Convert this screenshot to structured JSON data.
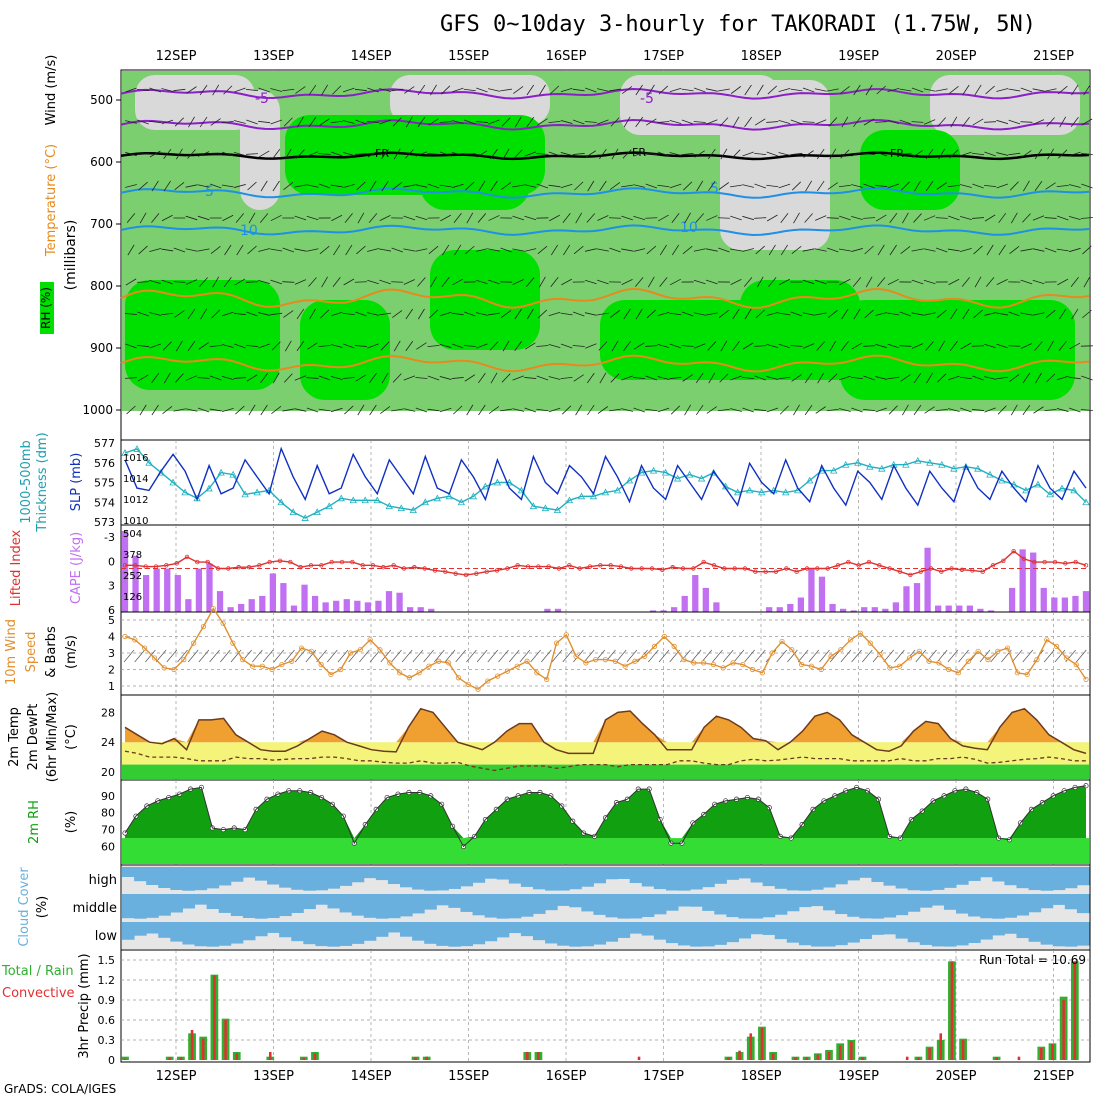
{
  "title": "GFS 0~10day 3-hourly for TAKORADI (1.75W, 5N)",
  "footer": "GrADS: COLA/IGES",
  "dates": [
    "12SEP",
    "13SEP",
    "14SEP",
    "15SEP",
    "16SEP",
    "17SEP",
    "18SEP",
    "19SEP",
    "20SEP",
    "21SEP"
  ],
  "colors": {
    "rh_light": "#d9d9d9",
    "rh_green": "#7ccf6f",
    "rh_bright": "#00e000",
    "temp_purple": "#8b1fc8",
    "temp_blue": "#1e90e6",
    "temp_orange": "#e68a1e",
    "fr": "#000000",
    "slp": "#1030c0",
    "thick": "#20b0c0",
    "li": "#e03030",
    "cape": "#c070f0",
    "wind": "#e09030",
    "temp_fill": "#f0a030",
    "dew_fill": "#f4f47a",
    "rh_fill": "#10a010",
    "cloud": "#6ab0de",
    "rain_total": "#30b030",
    "rain_conv": "#e03030"
  },
  "panels": {
    "profile": {
      "ylabel_rh": "RH (%)",
      "ylabel_temp": "Temperature (°C)",
      "ylabel_wind": "Wind (m/s)",
      "ylabel_units": "(millibars)",
      "levels": [
        "500",
        "600",
        "700",
        "800",
        "900",
        "1000"
      ],
      "contours": {
        "p5": "-5",
        "fr": "FR",
        "m5": "5",
        "m10": "10"
      }
    },
    "slp": {
      "label_a": "1000-500mb",
      "label_b": "Thickness (dm)",
      "label_c": "SLP (mb)",
      "left_ticks": [
        "577",
        "576",
        "575",
        "574",
        "573"
      ],
      "right_ticks": [
        "1016",
        "1014",
        "1012",
        "1010"
      ]
    },
    "li": {
      "label_a": "Lifted Index",
      "label_b": "CAPE (J/kg)",
      "left_ticks": [
        "-3",
        "0",
        "3",
        "6"
      ],
      "right_ticks": [
        "504",
        "378",
        "252",
        "126"
      ]
    },
    "wind": {
      "label_a": "10m Wind",
      "label_b": "Speed",
      "label_c": "& Barbs",
      "label_d": "(m/s)",
      "ticks": [
        "5",
        "4",
        "3",
        "2",
        "1"
      ]
    },
    "temp": {
      "label_a": "2m Temp",
      "label_b": "2m DewPt",
      "label_c": "(6hr Min/Max)",
      "label_d": "(°C)",
      "ticks": [
        "28",
        "24",
        "20"
      ]
    },
    "rh": {
      "label_a": "2m RH",
      "label_b": "(%)",
      "ticks": [
        "90",
        "80",
        "70",
        "60"
      ]
    },
    "cloud": {
      "label_a": "Cloud Cover",
      "label_b": "(%)",
      "ticks": [
        "high",
        "middle",
        "low"
      ]
    },
    "precip": {
      "label_a": "Total / Rain",
      "label_b": "Convective",
      "label_c": "3hr Precip (mm)",
      "ticks": [
        "1.5",
        "1.2",
        "0.9",
        "0.6",
        "0.3",
        "0"
      ],
      "run_total": "Run Total = 10.69"
    }
  },
  "chart_data": [
    {
      "type": "line",
      "title": "1000-500mb Thickness (dm) / SLP (mb)",
      "series": [
        {
          "name": "SLP (mb)",
          "values": [
            1015.5,
            1013,
            1012.8,
            1014.5,
            1016,
            1014.5,
            1012,
            1015,
            1012.5,
            1013,
            1015.5,
            1014,
            1012.5,
            1016.5,
            1014,
            1012,
            1015,
            1012.5,
            1013,
            1016,
            1014,
            1012.5,
            1015.5,
            1014,
            1012.5,
            1015.8,
            1013,
            1012.5,
            1015.5,
            1014,
            1012,
            1015.5,
            1013,
            1012,
            1015.8,
            1013.5,
            1012.5,
            1015,
            1014,
            1012.5,
            1015.8,
            1014,
            1011.8,
            1015,
            1013,
            1012,
            1015,
            1013.5,
            1012,
            1014.5,
            1013,
            1011.5,
            1015.2,
            1013.5,
            1012.5,
            1015.5,
            1013,
            1011.8,
            1015,
            1013,
            1011.5,
            1014.5,
            1013.5,
            1012,
            1015,
            1013,
            1011.5,
            1014.5,
            1013,
            1011.8,
            1015,
            1013,
            1012,
            1014.5,
            1013,
            1011.8,
            1015,
            1013,
            1012,
            1014.5,
            1013
          ]
        },
        {
          "name": "1000-500mb Thickness (dm)",
          "values": [
            576.5,
            576.7,
            576,
            575.5,
            575,
            574.5,
            574.2,
            574.7,
            575.5,
            575.4,
            574.4,
            574.5,
            574.6,
            574,
            573.5,
            573.2,
            573.5,
            573.8,
            574.2,
            574.1,
            574.1,
            574.1,
            573.8,
            573.7,
            573.6,
            574,
            574.2,
            574.3,
            574,
            574.3,
            574.8,
            575,
            575,
            574.6,
            573.8,
            573.7,
            573.6,
            574.1,
            574.3,
            574.3,
            574.5,
            574.6,
            575.1,
            575.5,
            575.6,
            575.5,
            575.2,
            575.4,
            575.2,
            575.5,
            574.8,
            574.5,
            574.6,
            574.5,
            574.6,
            574.5,
            574.6,
            575.1,
            575.6,
            575.6,
            575.9,
            576,
            575.8,
            575.7,
            575.9,
            575.9,
            576.1,
            576,
            575.9,
            575.7,
            575.8,
            575.7,
            575.4,
            575.1,
            574.9,
            574.6,
            574.9,
            574.4,
            574.7,
            574.6,
            574
          ]
        }
      ]
    },
    {
      "type": "bar",
      "title": "Lifted Index / CAPE (J/kg)",
      "series": [
        {
          "name": "CAPE (J/kg)",
          "values": [
            504,
            350,
            230,
            270,
            270,
            230,
            80,
            270,
            300,
            130,
            30,
            50,
            80,
            100,
            240,
            180,
            40,
            170,
            100,
            60,
            70,
            80,
            70,
            60,
            70,
            130,
            120,
            30,
            30,
            20,
            0,
            0,
            0,
            0,
            0,
            0,
            0,
            0,
            0,
            0,
            20,
            20,
            0,
            0,
            0,
            0,
            0,
            0,
            0,
            0,
            10,
            10,
            30,
            100,
            230,
            150,
            60,
            0,
            0,
            0,
            0,
            30,
            30,
            50,
            90,
            270,
            220,
            50,
            20,
            10,
            30,
            30,
            20,
            60,
            160,
            180,
            400,
            40,
            40,
            40,
            40,
            20,
            10,
            0,
            150,
            390,
            370,
            150,
            90,
            90,
            100,
            130
          ]
        },
        {
          "name": "Lifted Index",
          "values": [
            -0.5,
            -0.5,
            -0.3,
            -0.3,
            -0.5,
            -0.8,
            -1.8,
            -1,
            -1,
            0,
            0,
            -0.2,
            -0.2,
            -0.5,
            -1,
            -1.2,
            -1,
            -0.2,
            -0.5,
            -0.5,
            -1,
            -1,
            -1,
            -0.5,
            -0.5,
            -0.2,
            -0.5,
            0,
            -0.2,
            0,
            0.3,
            0.5,
            0.8,
            1,
            0.8,
            0.5,
            0.3,
            0,
            -0.5,
            -0.3,
            -0.3,
            -0.3,
            0,
            -0.5,
            0,
            -0.3,
            -0.5,
            -0.5,
            -0.3,
            0,
            0,
            0,
            0.2,
            -0.2,
            0,
            0,
            -1,
            -0.5,
            0,
            0,
            0,
            0.5,
            0.5,
            0.5,
            0,
            0.5,
            0,
            0,
            0,
            -0.5,
            -1,
            -0.5,
            -1,
            -0.5,
            0,
            0.5,
            1,
            0.5,
            0,
            0.5,
            0,
            0.2,
            0.3,
            0.5,
            -0.5,
            -1.2,
            -2.7,
            -1.5,
            -1,
            -1,
            -1,
            -0.8,
            -1,
            -0.5
          ]
        }
      ]
    },
    {
      "type": "line",
      "title": "10m Wind Speed & Barbs (m/s)",
      "series": [
        {
          "name": "Speed",
          "values": [
            4,
            3.8,
            3.3,
            2.7,
            2.1,
            2,
            2.6,
            3.6,
            4.6,
            5.7,
            4.8,
            3.6,
            2.6,
            2.2,
            2.2,
            2,
            2.3,
            2.5,
            3.3,
            3.1,
            2.3,
            1.7,
            2,
            3,
            3.2,
            3.8,
            3.2,
            2.4,
            1.8,
            1.5,
            1.8,
            2.2,
            2.5,
            2.4,
            1.5,
            1.1,
            0.8,
            1.3,
            1.6,
            1.9,
            2.2,
            2.5,
            1.8,
            1.4,
            3.6,
            4.1,
            2.8,
            2.4,
            2.6,
            2.6,
            2.5,
            2.2,
            2.5,
            2.8,
            3.4,
            4,
            3.4,
            2.6,
            2.4,
            2.4,
            2.3,
            2.1,
            2.4,
            2.3,
            2,
            1.8,
            3,
            3.7,
            3.2,
            2.3,
            2.2,
            2,
            2.8,
            3.2,
            3.8,
            4.2,
            3.6,
            2.9,
            2.1,
            2.2,
            2.7,
            3.1,
            2.5,
            2.4,
            2,
            1.8,
            2.5,
            3.1,
            2.6,
            3.1,
            3.3,
            1.8,
            1.7,
            2.6,
            3.8,
            3.4,
            2.7,
            2.3,
            1.4
          ]
        }
      ]
    },
    {
      "type": "area",
      "title": "2m Temp / 2m DewPt (°C)",
      "series": [
        {
          "name": "2m Temp",
          "values": [
            26,
            25,
            24,
            23.8,
            24.5,
            23,
            27,
            27,
            27.2,
            25,
            24,
            23,
            22.8,
            22.8,
            23.5,
            24.5,
            25.5,
            25,
            24,
            23.5,
            23,
            22.8,
            22.7,
            26,
            28.5,
            28,
            26,
            24,
            23.5,
            23,
            24,
            25.5,
            26.5,
            26.5,
            24,
            23,
            22.5,
            22.5,
            22.5,
            27,
            28,
            28.2,
            26.5,
            25,
            23,
            23,
            23,
            26,
            27.5,
            27,
            26,
            24.5,
            24.2,
            23,
            24,
            25.5,
            27.5,
            28,
            27,
            25,
            24,
            23,
            22.8,
            23.5,
            25.5,
            26.8,
            26.5,
            24.5,
            23.5,
            23.2,
            23,
            26,
            28,
            28.5,
            27,
            25,
            24,
            23,
            22.5
          ]
        },
        {
          "name": "2m DewPt",
          "values": [
            22.8,
            22.5,
            22,
            22,
            22,
            21.8,
            21.5,
            21.5,
            21.5,
            22,
            21.8,
            21.8,
            21.6,
            21.7,
            21.8,
            21.8,
            22,
            22,
            21.8,
            21.5,
            21.5,
            21.3,
            21.2,
            21.2,
            21.5,
            21.2,
            21.2,
            21.3,
            20.8,
            20.5,
            20.2,
            20.5,
            20.8,
            20.8,
            20.8,
            20.5,
            20.7,
            21,
            21,
            21,
            20.7,
            21,
            21,
            21,
            21,
            21.5,
            21.5,
            21.2,
            21,
            21,
            21.5,
            21.7,
            21.5,
            21.6,
            21.8,
            22,
            21.8,
            21.8,
            21.8,
            21.5,
            21.5,
            21.5,
            21.5,
            21.8,
            21.5,
            21.5,
            21.8,
            21.8,
            22,
            21.7,
            21.2,
            21.3,
            21.5,
            21.7,
            21.8,
            22,
            21.8,
            21.5,
            21.5
          ]
        }
      ]
    },
    {
      "type": "area",
      "title": "2m RH (%)",
      "series": [
        {
          "name": "2m RH",
          "values": [
            68,
            78,
            84,
            87,
            89,
            91,
            94,
            95,
            71,
            70,
            71,
            70,
            82,
            88,
            91,
            93,
            93,
            92,
            89,
            85,
            78,
            62,
            73,
            82,
            89,
            91,
            92,
            92,
            90,
            85,
            72,
            60,
            66,
            76,
            82,
            88,
            90,
            92,
            92,
            90,
            84,
            75,
            68,
            66,
            77,
            86,
            88,
            94,
            94,
            76,
            62,
            62,
            74,
            79,
            85,
            87,
            88,
            89,
            88,
            83,
            66,
            65,
            73,
            82,
            87,
            90,
            93,
            95,
            93,
            88,
            66,
            65,
            76,
            81,
            87,
            90,
            93,
            94,
            92,
            88,
            65,
            64,
            74,
            82,
            86,
            90,
            93,
            95,
            96
          ]
        }
      ]
    },
    {
      "type": "bar",
      "title": "3hr Precip (mm)",
      "series": [
        {
          "name": "Total",
          "values": [
            0.05,
            0,
            0,
            0,
            0.05,
            0.05,
            0.4,
            0.35,
            1.28,
            0.62,
            0.12,
            0,
            0,
            0.05,
            0,
            0,
            0.05,
            0.12,
            0,
            0,
            0,
            0,
            0,
            0,
            0,
            0,
            0.05,
            0.05,
            0,
            0,
            0,
            0,
            0,
            0,
            0,
            0,
            0.12,
            0.12,
            0,
            0,
            0,
            0,
            0,
            0,
            0,
            0,
            0,
            0,
            0,
            0,
            0,
            0,
            0,
            0,
            0.05,
            0.12,
            0.35,
            0.5,
            0.12,
            0,
            0.05,
            0.05,
            0.1,
            0.15,
            0.25,
            0.3,
            0.05,
            0,
            0,
            0,
            0,
            0.05,
            0.2,
            0.3,
            1.48,
            0.32,
            0,
            0,
            0.05,
            0,
            0,
            0,
            0.2,
            0.25,
            0.95,
            1.48,
            0
          ]
        },
        {
          "name": "Convective",
          "values": [
            0.02,
            0,
            0,
            0,
            0.04,
            0.04,
            0.45,
            0.32,
            1.27,
            0.6,
            0.1,
            0,
            0,
            0.12,
            0,
            0,
            0.03,
            0.1,
            0,
            0,
            0,
            0,
            0,
            0,
            0,
            0,
            0.04,
            0.05,
            0,
            0,
            0,
            0,
            0,
            0,
            0,
            0,
            0.12,
            0.12,
            0,
            0,
            0,
            0,
            0,
            0,
            0,
            0,
            0.05,
            0,
            0,
            0,
            0,
            0,
            0,
            0,
            0.04,
            0.14,
            0.4,
            0.48,
            0.1,
            0,
            0.04,
            0.04,
            0.08,
            0.12,
            0.22,
            0.28,
            0.04,
            0,
            0,
            0,
            0.05,
            0.04,
            0.18,
            0.4,
            1.48,
            0.3,
            0,
            0,
            0.04,
            0,
            0.05,
            0,
            0.18,
            0.24,
            0.9,
            1.48,
            0
          ]
        }
      ]
    }
  ]
}
